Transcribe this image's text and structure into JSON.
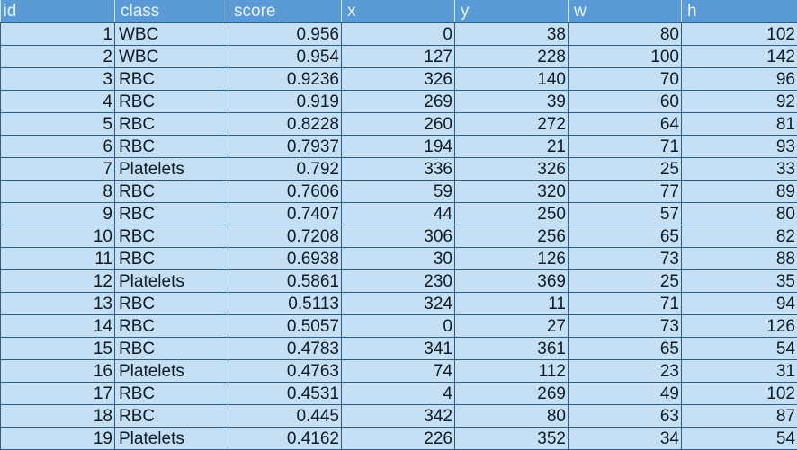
{
  "columns": [
    "id",
    "class",
    "score",
    "x",
    "y",
    "w",
    "h"
  ],
  "rows": [
    [
      "1",
      "WBC",
      "0.956",
      "0",
      "38",
      "80",
      "102"
    ],
    [
      "2",
      "WBC",
      "0.954",
      "127",
      "228",
      "100",
      "142"
    ],
    [
      "3",
      "RBC",
      "0.9236",
      "326",
      "140",
      "70",
      "96"
    ],
    [
      "4",
      "RBC",
      "0.919",
      "269",
      "39",
      "60",
      "92"
    ],
    [
      "5",
      "RBC",
      "0.8228",
      "260",
      "272",
      "64",
      "81"
    ],
    [
      "6",
      "RBC",
      "0.7937",
      "194",
      "21",
      "71",
      "93"
    ],
    [
      "7",
      "Platelets",
      "0.792",
      "336",
      "326",
      "25",
      "33"
    ],
    [
      "8",
      "RBC",
      "0.7606",
      "59",
      "320",
      "77",
      "89"
    ],
    [
      "9",
      "RBC",
      "0.7407",
      "44",
      "250",
      "57",
      "80"
    ],
    [
      "10",
      "RBC",
      "0.7208",
      "306",
      "256",
      "65",
      "82"
    ],
    [
      "11",
      "RBC",
      "0.6938",
      "30",
      "126",
      "73",
      "88"
    ],
    [
      "12",
      "Platelets",
      "0.5861",
      "230",
      "369",
      "25",
      "35"
    ],
    [
      "13",
      "RBC",
      "0.5113",
      "324",
      "11",
      "71",
      "94"
    ],
    [
      "14",
      "RBC",
      "0.5057",
      "0",
      "27",
      "73",
      "126"
    ],
    [
      "15",
      "RBC",
      "0.4783",
      "341",
      "361",
      "65",
      "54"
    ],
    [
      "16",
      "Platelets",
      "0.4763",
      "74",
      "112",
      "23",
      "31"
    ],
    [
      "17",
      "RBC",
      "0.4531",
      "4",
      "269",
      "49",
      "102"
    ],
    [
      "18",
      "RBC",
      "0.445",
      "342",
      "80",
      "63",
      "87"
    ],
    [
      "19",
      "Platelets",
      "0.4162",
      "226",
      "352",
      "34",
      "54"
    ]
  ]
}
